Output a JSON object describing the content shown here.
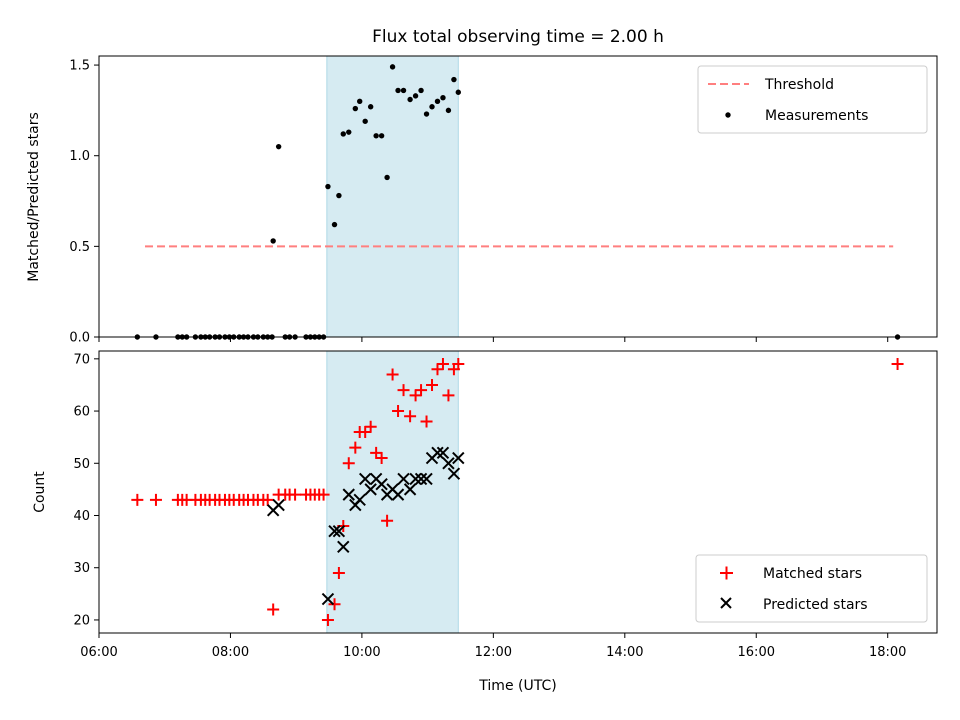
{
  "chart_data": [
    {
      "type": "scatter",
      "title": "Flux total observing time = 2.00 h",
      "xlabel": "",
      "ylabel": "Matched/Predicted stars",
      "xlim": [
        "06:00",
        "18:45"
      ],
      "ylim": [
        0,
        1.55
      ],
      "yticks": [
        "0.0",
        "0.5",
        "1.0",
        "1.5"
      ],
      "xticks": [
        "06:00",
        "08:00",
        "10:00",
        "12:00",
        "14:00",
        "16:00",
        "18:00"
      ],
      "xtick_labels_shown": false,
      "grid": false,
      "legend_position": "top-right",
      "observing_window": {
        "start": "09:28",
        "end": "11:28",
        "color": "#add8e6"
      },
      "threshold": {
        "name": "Threshold",
        "value": 0.5,
        "x_start": "06:42",
        "x_end": "18:05",
        "color": "#ff7f7f",
        "style": "dashed"
      },
      "series": [
        {
          "name": "Measurements",
          "color": "#000000",
          "points": [
            [
              "06:35",
              0
            ],
            [
              "06:52",
              0
            ],
            [
              "07:12",
              0
            ],
            [
              "07:16",
              0
            ],
            [
              "07:20",
              0
            ],
            [
              "07:28",
              0
            ],
            [
              "07:33",
              0
            ],
            [
              "07:37",
              0
            ],
            [
              "07:41",
              0
            ],
            [
              "07:46",
              0
            ],
            [
              "07:50",
              0
            ],
            [
              "07:55",
              0
            ],
            [
              "07:59",
              0
            ],
            [
              "08:03",
              0
            ],
            [
              "08:08",
              0
            ],
            [
              "08:12",
              0
            ],
            [
              "08:16",
              0
            ],
            [
              "08:21",
              0
            ],
            [
              "08:25",
              0
            ],
            [
              "08:30",
              0
            ],
            [
              "08:34",
              0
            ],
            [
              "08:38",
              0
            ],
            [
              "08:39",
              0.53
            ],
            [
              "08:44",
              1.05
            ],
            [
              "08:50",
              0
            ],
            [
              "08:54",
              0
            ],
            [
              "08:59",
              0
            ],
            [
              "09:09",
              0
            ],
            [
              "09:13",
              0
            ],
            [
              "09:17",
              0
            ],
            [
              "09:21",
              0
            ],
            [
              "09:25",
              0
            ],
            [
              "09:29",
              0.83
            ],
            [
              "09:35",
              0.62
            ],
            [
              "09:39",
              0.78
            ],
            [
              "09:43",
              1.12
            ],
            [
              "09:48",
              1.13
            ],
            [
              "09:54",
              1.26
            ],
            [
              "09:58",
              1.3
            ],
            [
              "10:03",
              1.19
            ],
            [
              "10:08",
              1.27
            ],
            [
              "10:13",
              1.11
            ],
            [
              "10:18",
              1.11
            ],
            [
              "10:23",
              0.88
            ],
            [
              "10:28",
              1.49
            ],
            [
              "10:33",
              1.36
            ],
            [
              "10:38",
              1.36
            ],
            [
              "10:44",
              1.31
            ],
            [
              "10:49",
              1.33
            ],
            [
              "10:54",
              1.36
            ],
            [
              "10:59",
              1.23
            ],
            [
              "11:04",
              1.27
            ],
            [
              "11:09",
              1.3
            ],
            [
              "11:14",
              1.32
            ],
            [
              "11:19",
              1.25
            ],
            [
              "11:24",
              1.42
            ],
            [
              "11:28",
              1.35
            ],
            [
              "18:09",
              0
            ]
          ]
        }
      ]
    },
    {
      "type": "scatter",
      "title": "",
      "xlabel": "Time (UTC)",
      "ylabel": "Count",
      "xlim": [
        "06:00",
        "18:45"
      ],
      "ylim": [
        17.5,
        71.5
      ],
      "yticks": [
        "20",
        "30",
        "40",
        "50",
        "60",
        "70"
      ],
      "xticks": [
        "06:00",
        "08:00",
        "10:00",
        "12:00",
        "14:00",
        "16:00",
        "18:00"
      ],
      "grid": false,
      "legend_position": "bottom-right",
      "observing_window": {
        "start": "09:28",
        "end": "11:28",
        "color": "#add8e6"
      },
      "series": [
        {
          "name": "Matched stars",
          "color": "#ff0000",
          "marker": "plus",
          "points": [
            [
              "06:35",
              43
            ],
            [
              "06:52",
              43
            ],
            [
              "07:12",
              43
            ],
            [
              "07:16",
              43
            ],
            [
              "07:20",
              43
            ],
            [
              "07:28",
              43
            ],
            [
              "07:33",
              43
            ],
            [
              "07:37",
              43
            ],
            [
              "07:41",
              43
            ],
            [
              "07:46",
              43
            ],
            [
              "07:50",
              43
            ],
            [
              "07:55",
              43
            ],
            [
              "07:59",
              43
            ],
            [
              "08:03",
              43
            ],
            [
              "08:08",
              43
            ],
            [
              "08:12",
              43
            ],
            [
              "08:16",
              43
            ],
            [
              "08:21",
              43
            ],
            [
              "08:25",
              43
            ],
            [
              "08:30",
              43
            ],
            [
              "08:34",
              43
            ],
            [
              "08:39",
              22
            ],
            [
              "08:44",
              44
            ],
            [
              "08:50",
              44
            ],
            [
              "08:54",
              44
            ],
            [
              "08:59",
              44
            ],
            [
              "09:09",
              44
            ],
            [
              "09:13",
              44
            ],
            [
              "09:17",
              44
            ],
            [
              "09:21",
              44
            ],
            [
              "09:25",
              44
            ],
            [
              "09:29",
              20
            ],
            [
              "09:35",
              23
            ],
            [
              "09:39",
              29
            ],
            [
              "09:43",
              38
            ],
            [
              "09:48",
              50
            ],
            [
              "09:54",
              53
            ],
            [
              "09:58",
              56
            ],
            [
              "10:03",
              56
            ],
            [
              "10:08",
              57
            ],
            [
              "10:13",
              52
            ],
            [
              "10:18",
              51
            ],
            [
              "10:23",
              39
            ],
            [
              "10:28",
              67
            ],
            [
              "10:33",
              60
            ],
            [
              "10:38",
              64
            ],
            [
              "10:44",
              59
            ],
            [
              "10:49",
              63
            ],
            [
              "10:54",
              64
            ],
            [
              "10:59",
              58
            ],
            [
              "11:04",
              65
            ],
            [
              "11:09",
              68
            ],
            [
              "11:14",
              69
            ],
            [
              "11:19",
              63
            ],
            [
              "11:24",
              68
            ],
            [
              "11:28",
              69
            ],
            [
              "18:09",
              69
            ]
          ]
        },
        {
          "name": "Predicted stars",
          "color": "#000000",
          "marker": "x",
          "points": [
            [
              "08:39",
              41
            ],
            [
              "08:44",
              42
            ],
            [
              "09:29",
              24
            ],
            [
              "09:35",
              37
            ],
            [
              "09:39",
              37
            ],
            [
              "09:43",
              34
            ],
            [
              "09:48",
              44
            ],
            [
              "09:54",
              42
            ],
            [
              "09:58",
              43
            ],
            [
              "10:03",
              47
            ],
            [
              "10:08",
              45
            ],
            [
              "10:13",
              47
            ],
            [
              "10:18",
              46
            ],
            [
              "10:23",
              44
            ],
            [
              "10:28",
              45
            ],
            [
              "10:33",
              44
            ],
            [
              "10:38",
              47
            ],
            [
              "10:44",
              45
            ],
            [
              "10:49",
              47
            ],
            [
              "10:54",
              47
            ],
            [
              "10:59",
              47
            ],
            [
              "11:04",
              51
            ],
            [
              "11:09",
              52
            ],
            [
              "11:14",
              52
            ],
            [
              "11:19",
              50
            ],
            [
              "11:24",
              48
            ],
            [
              "11:28",
              51
            ]
          ]
        }
      ]
    }
  ]
}
